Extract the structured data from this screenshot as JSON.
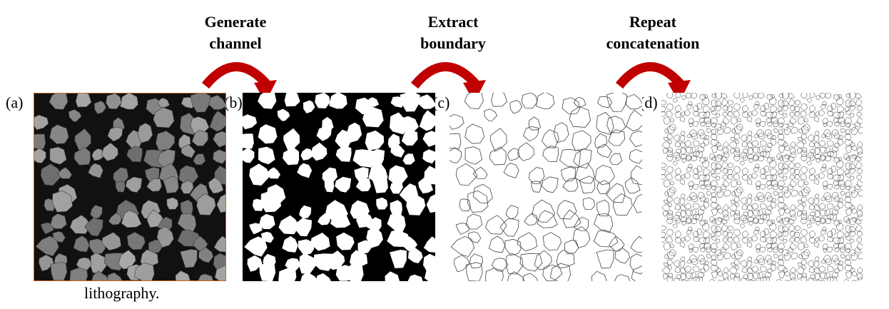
{
  "steps": [
    {
      "line1": "Generate",
      "line2": "channel"
    },
    {
      "line1": "Extract",
      "line2": "boundary"
    },
    {
      "line1": "Repeat",
      "line2": "concatenation"
    }
  ],
  "panels": [
    {
      "label": "(a)",
      "content": "grayscale micrograph of sand grains"
    },
    {
      "label": "(b)",
      "content": "binarized channel image, white grains on black"
    },
    {
      "label": "(c)",
      "content": "extracted grain boundary outlines"
    },
    {
      "label": "(d)",
      "content": "tiled repeated boundary pattern"
    }
  ],
  "caption": "lithography.",
  "colors": {
    "arrow": "#c00000",
    "grain_gray": "#8a8a8a",
    "pore": "#000000",
    "outline": "#333333",
    "panel_a_border": "#c46a2a"
  }
}
